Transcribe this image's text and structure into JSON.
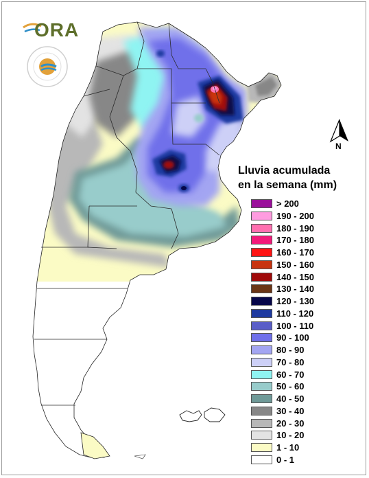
{
  "map": {
    "country": "Argentina",
    "content": "weekly accumulated rainfall map",
    "background_color": "#ffffff"
  },
  "logos": {
    "ora_text": "ORA",
    "seal_text_top": "SERVICIO METEOROLOGICO NACIONAL",
    "seal_text_bottom": "ARGENTINA",
    "ora_colors": [
      "#5e6f2b",
      "#e2a13a",
      "#2f8fc8"
    ]
  },
  "north_arrow": {
    "label": "N"
  },
  "legend": {
    "title_line1": "Lluvia acumulada",
    "title_line2": "en la semana (mm)",
    "items": [
      {
        "label": "> 200",
        "color": "#9b0f9b"
      },
      {
        "label": "190 - 200",
        "color": "#ff9ce0"
      },
      {
        "label": "180 - 190",
        "color": "#ff6fb0"
      },
      {
        "label": "170 - 180",
        "color": "#f2197a"
      },
      {
        "label": "160 - 170",
        "color": "#ff1414"
      },
      {
        "label": "150 - 160",
        "color": "#c83410"
      },
      {
        "label": "140 - 150",
        "color": "#a00a0a"
      },
      {
        "label": "130 - 140",
        "color": "#6b3515"
      },
      {
        "label": "120 - 130",
        "color": "#07074a"
      },
      {
        "label": "110 - 120",
        "color": "#1e3aa0"
      },
      {
        "label": "100 - 110",
        "color": "#5a5ec8"
      },
      {
        "label": "90 - 100",
        "color": "#6f70ea"
      },
      {
        "label": "80 - 90",
        "color": "#a3a5f2"
      },
      {
        "label": "70 - 80",
        "color": "#cdd0f7"
      },
      {
        "label": "60 - 70",
        "color": "#8ff4f2"
      },
      {
        "label": "50 - 60",
        "color": "#98cccb"
      },
      {
        "label": "40 - 50",
        "color": "#6f9a98"
      },
      {
        "label": "30 - 40",
        "color": "#878787"
      },
      {
        "label": "20 - 30",
        "color": "#b8b8b8"
      },
      {
        "label": "10 - 20",
        "color": "#e3e3e3"
      },
      {
        "label": "1 - 10",
        "color": "#fbfbc5"
      },
      {
        "label": "0 - 1",
        "color": "#ffffff"
      }
    ]
  }
}
